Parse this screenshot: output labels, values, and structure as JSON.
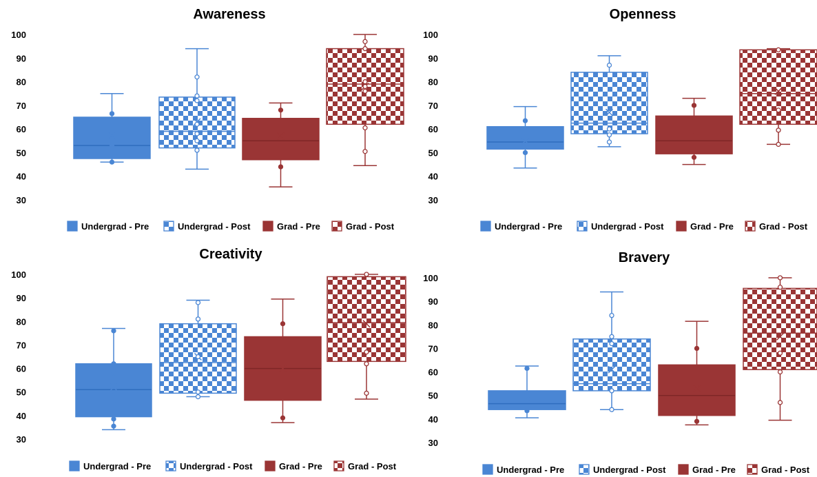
{
  "colors": {
    "undergrad": "#4A86D4",
    "undergrad_dark": "#2F6DBE",
    "grad": "#9A3535",
    "grad_dark": "#7E2626",
    "background": "#ffffff"
  },
  "chart_data": [
    {
      "type": "box",
      "title": "Awareness",
      "ylim": [
        30,
        100
      ],
      "yticks": [
        30,
        40,
        50,
        60,
        70,
        80,
        90,
        100
      ],
      "grid": false,
      "legend_position": "bottom",
      "series": [
        {
          "name": "Undergrad - Pre",
          "min": 46,
          "q1": 47.5,
          "median": 53,
          "q3": 65,
          "max": 75,
          "mean": 57,
          "points": [
            46,
            53,
            66.5
          ]
        },
        {
          "name": "Undergrad - Post",
          "min": 43,
          "q1": 52,
          "median": 59,
          "q3": 73.5,
          "max": 94,
          "mean": 63,
          "points": [
            51,
            55,
            58,
            62,
            72,
            74,
            82
          ]
        },
        {
          "name": "Grad - Pre",
          "min": 35.5,
          "q1": 47,
          "median": 55,
          "q3": 64.5,
          "max": 71,
          "mean": 57,
          "points": [
            44,
            68
          ]
        },
        {
          "name": "Grad - Post",
          "min": 44.5,
          "q1": 62,
          "median": 79,
          "q3": 94,
          "max": 100,
          "mean": 78,
          "points": [
            50.5,
            60.5,
            76,
            78,
            80,
            94,
            97
          ]
        }
      ]
    },
    {
      "type": "box",
      "title": "Openness",
      "ylim": [
        30,
        100
      ],
      "yticks": [
        30,
        40,
        50,
        60,
        70,
        80,
        90,
        100
      ],
      "grid": false,
      "legend_position": "bottom",
      "series": [
        {
          "name": "Undergrad - Pre",
          "min": 43.5,
          "q1": 51.5,
          "median": 54.5,
          "q3": 61,
          "max": 69.5,
          "mean": 55,
          "points": [
            50,
            63.5
          ]
        },
        {
          "name": "Undergrad - Post",
          "min": 52.5,
          "q1": 58,
          "median": 62.5,
          "q3": 84,
          "max": 91,
          "mean": 67,
          "points": [
            54.5,
            57.5,
            60,
            87
          ]
        },
        {
          "name": "Grad - Pre",
          "min": 45,
          "q1": 49.5,
          "median": 55,
          "q3": 65.5,
          "max": 73,
          "mean": 58,
          "points": [
            48,
            70
          ]
        },
        {
          "name": "Grad - Post",
          "min": 53.5,
          "q1": 62,
          "median": 75,
          "q3": 93.5,
          "max": 94,
          "mean": 76,
          "points": [
            53.5,
            59.5,
            68,
            93.5
          ]
        }
      ]
    },
    {
      "type": "box",
      "title": "Creativity",
      "ylim": [
        30,
        100
      ],
      "yticks": [
        30,
        40,
        50,
        60,
        70,
        80,
        90,
        100
      ],
      "grid": false,
      "legend_position": "bottom",
      "series": [
        {
          "name": "Undergrad - Pre",
          "min": 34,
          "q1": 39.5,
          "median": 51,
          "q3": 62,
          "max": 77,
          "mean": 52,
          "points": [
            35.5,
            38.5,
            45,
            49,
            53,
            56,
            58,
            62,
            76
          ]
        },
        {
          "name": "Undergrad - Post",
          "min": 48,
          "q1": 49.5,
          "median": 62.5,
          "q3": 79,
          "max": 89,
          "mean": 65,
          "points": [
            48,
            50,
            65,
            81,
            88
          ]
        },
        {
          "name": "Grad - Pre",
          "min": 37,
          "q1": 46.5,
          "median": 60,
          "q3": 73.5,
          "max": 89.5,
          "mean": 60,
          "points": [
            39,
            79
          ]
        },
        {
          "name": "Grad - Post",
          "min": 47,
          "q1": 63,
          "median": 79.5,
          "q3": 99,
          "max": 100,
          "mean": 79,
          "points": [
            49.5,
            62,
            67,
            100
          ]
        }
      ]
    },
    {
      "type": "box",
      "title": "Bravery",
      "ylim": [
        30,
        100
      ],
      "yticks": [
        30,
        40,
        50,
        60,
        70,
        80,
        90,
        100
      ],
      "grid": false,
      "legend_position": "bottom",
      "series": [
        {
          "name": "Undergrad - Pre",
          "min": 40.5,
          "q1": 44,
          "median": 46.5,
          "q3": 52,
          "max": 62.5,
          "mean": 48.5,
          "points": [
            43.5,
            45,
            61.5
          ]
        },
        {
          "name": "Undergrad - Post",
          "min": 44,
          "q1": 52,
          "median": 55,
          "q3": 74,
          "max": 94,
          "mean": 61,
          "points": [
            44,
            52,
            72,
            75,
            84
          ]
        },
        {
          "name": "Grad - Pre",
          "min": 37.5,
          "q1": 41.5,
          "median": 50,
          "q3": 63,
          "max": 81.5,
          "mean": 53,
          "points": [
            39,
            70
          ]
        },
        {
          "name": "Grad - Post",
          "min": 39.5,
          "q1": 61,
          "median": 76.5,
          "q3": 95.5,
          "max": 100,
          "mean": 75,
          "points": [
            47,
            60,
            68,
            96,
            100
          ]
        }
      ]
    }
  ]
}
